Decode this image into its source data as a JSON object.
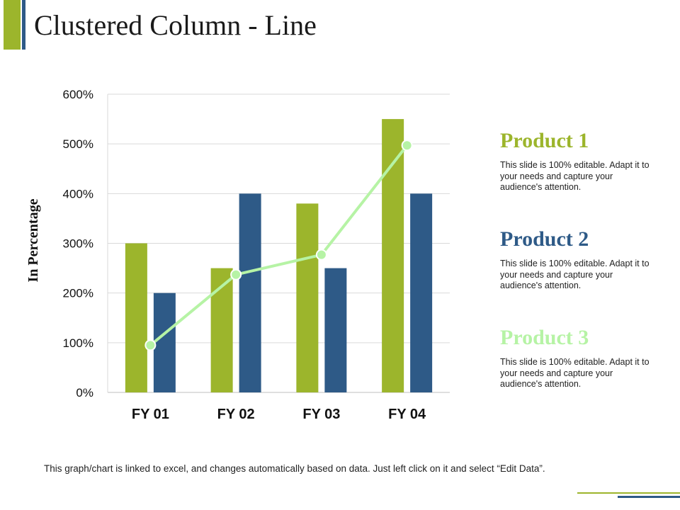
{
  "slide": {
    "title": "Clustered Column - Line",
    "footer": "This graph/chart is linked to excel, and changes automatically  based on data. Just left click on it and select “Edit Data”."
  },
  "legend": [
    {
      "title": "Product 1",
      "color": "#9cb52c",
      "desc": "This slide is 100% editable. Adapt it to your needs and capture your audience's attention."
    },
    {
      "title": "Product 2",
      "color": "#2e5a87",
      "desc": "This slide is 100% editable. Adapt it to your needs and capture your audience's attention."
    },
    {
      "title": "Product 3",
      "color": "#b6f3a5",
      "desc": "This slide is 100% editable. Adapt it to your needs and capture your audience's attention."
    }
  ],
  "chart_data": {
    "type": "bar",
    "title": "",
    "xlabel": "",
    "ylabel": "In Percentage",
    "categories": [
      "FY 01",
      "FY 02",
      "FY 03",
      "FY 04"
    ],
    "yticks": [
      "0%",
      "100%",
      "200%",
      "300%",
      "400%",
      "500%",
      "600%"
    ],
    "ylim": [
      0,
      600
    ],
    "grid": true,
    "series": [
      {
        "name": "Product 1",
        "kind": "bar",
        "color": "#9cb52c",
        "values": [
          300,
          250,
          380,
          550
        ]
      },
      {
        "name": "Product 2",
        "kind": "bar",
        "color": "#2e5a87",
        "values": [
          200,
          400,
          250,
          400
        ]
      },
      {
        "name": "Product 3",
        "kind": "line",
        "color": "#b6f3a5",
        "values": [
          95,
          237,
          277,
          497
        ]
      }
    ]
  }
}
